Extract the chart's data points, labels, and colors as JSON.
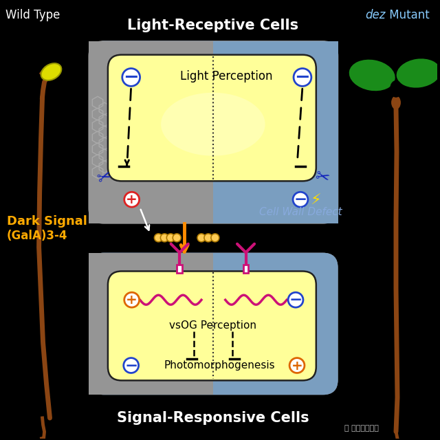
{
  "bg_color": "#000000",
  "title_light": "Light-Receptive Cells",
  "title_signal": "Signal-Responsive Cells",
  "label_wt": "Wild Type",
  "label_dez": "dez Mutant",
  "label_dark": "Dark Signal",
  "label_gala": "(GalA)3-4",
  "label_cell_wall": "Cell Wall Defect",
  "label_light_perception": "Light Perception",
  "label_vsog": "vsOG Perception",
  "label_photo": "Photomorphogenesis",
  "outer_gray": "#959595",
  "outer_blue": "#7a9ec0",
  "inner_yellow": "#ffff99",
  "orange_arrow": "#ff8c00",
  "dark_signal_color": "#ffaa00",
  "red_plus_color": "#dd2222",
  "blue_minus_color": "#2244cc",
  "orange_plus_color": "#dd6600",
  "receptor_color": "#cc1177",
  "wavy_color": "#cc1177",
  "scissors_blue": "#1122bb"
}
